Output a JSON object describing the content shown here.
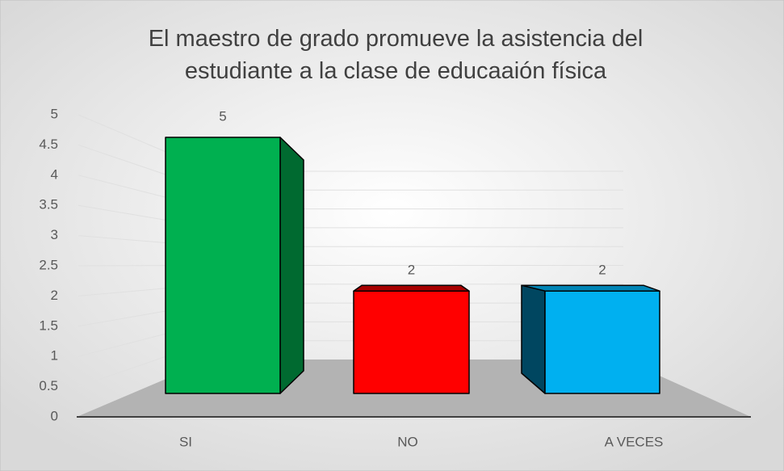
{
  "chart_data": {
    "type": "bar3d",
    "title": "El maestro de grado promueve la asistencia del estudiante a la clase de educaaión física",
    "categories": [
      "SI",
      "NO",
      "A VECES"
    ],
    "values": [
      5,
      2,
      2
    ],
    "colors": [
      "#00b050",
      "#ff0000",
      "#00b0f0"
    ],
    "ylim": [
      0,
      5
    ],
    "yticks": [
      0,
      0.5,
      1,
      1.5,
      2,
      2.5,
      3,
      3.5,
      4,
      4.5,
      5
    ],
    "grid": true
  }
}
